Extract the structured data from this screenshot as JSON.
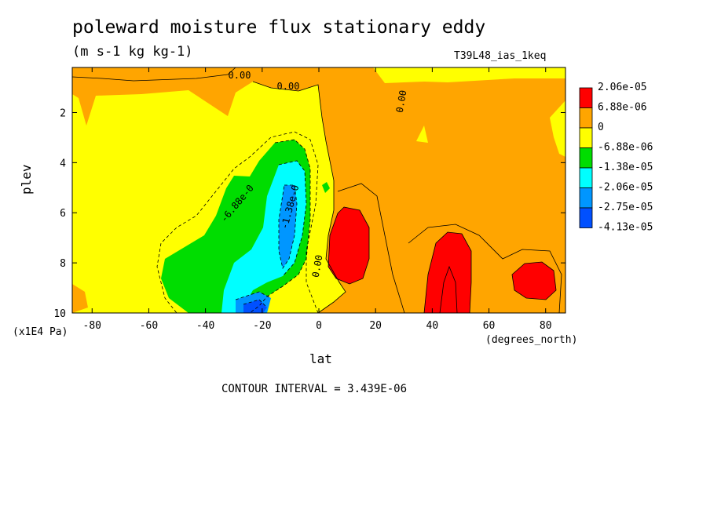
{
  "title": "poleward moisture flux stationary eddy",
  "units": "(m s-1 kg kg-1)",
  "dataset": "T39L48_ias_1keq",
  "contour_interval": "CONTOUR INTERVAL = 3.439E-06",
  "colors": {
    "red": "#ff0000",
    "orange": "#ffa500",
    "yellow": "#ffff00",
    "green": "#00dd00",
    "cyan": "#00ffff",
    "lightblue": "#0096ff",
    "blue": "#0050ff"
  },
  "chart_data": {
    "type": "heatmap",
    "xlabel": "lat",
    "xunits": "(degrees_north)",
    "ylabel": "plev",
    "yunits": "(x1E4 Pa)",
    "xlim": [
      -87,
      87
    ],
    "ylim": [
      10,
      0.2
    ],
    "xticks": [
      "-80",
      "-60",
      "-40",
      "-20",
      "0",
      "20",
      "40",
      "60",
      "80"
    ],
    "xtick_values": [
      -80,
      -60,
      -40,
      -20,
      0,
      20,
      40,
      60,
      80
    ],
    "yticks": [
      "2",
      "4",
      "6",
      "8",
      "10"
    ],
    "ytick_values": [
      2,
      4,
      6,
      8,
      10
    ],
    "colorbar_labels": [
      "2.06e-05",
      "6.88e-06",
      "0",
      "-6.88e-06",
      "-1.38e-05",
      "-2.06e-05",
      "-2.75e-05",
      "-4.13e-05"
    ],
    "contour_labels": [
      "0.00",
      "0.00",
      "0.00",
      "0.00",
      "-6.88e-0",
      "-1.38e-0"
    ],
    "legend_position": "right"
  }
}
